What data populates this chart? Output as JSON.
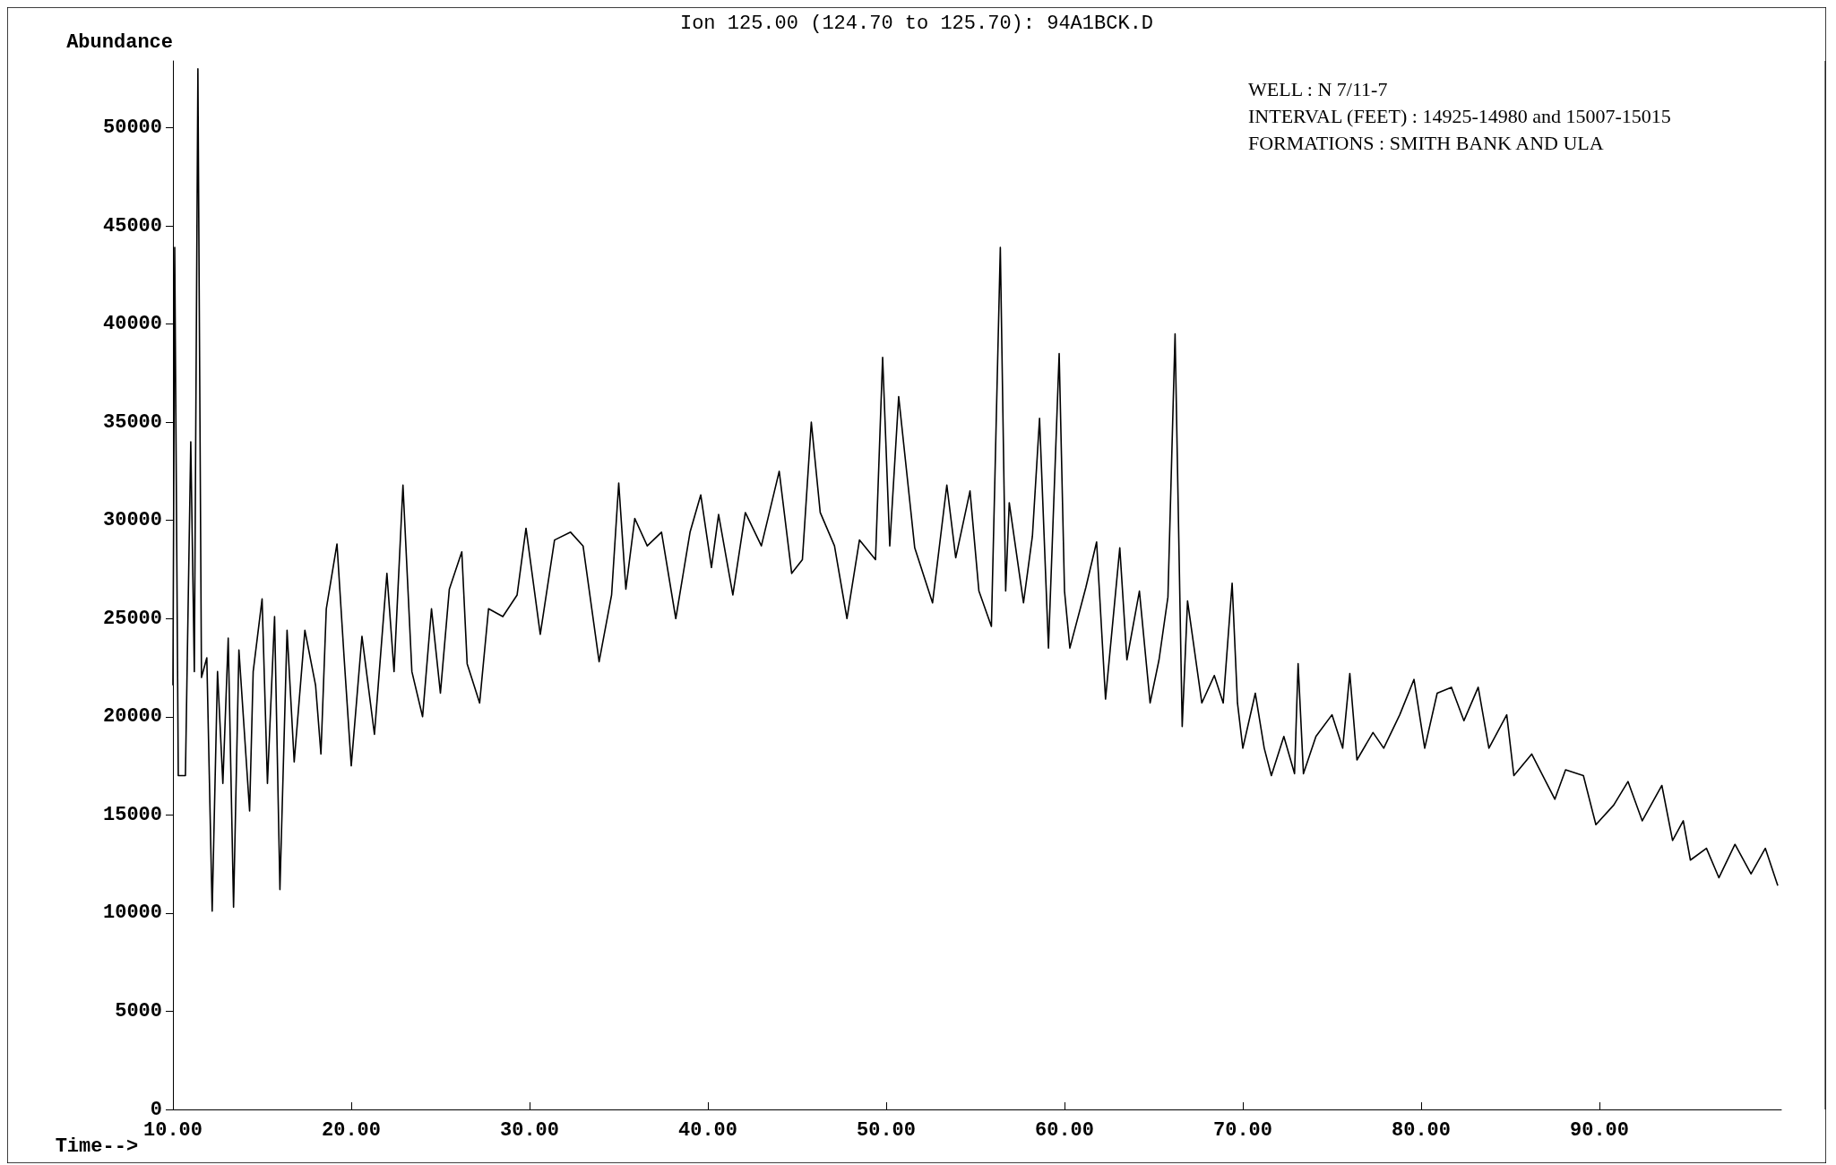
{
  "chart_data": {
    "type": "line",
    "title": "Ion 125.00 (124.70 to 125.70): 94A1BCK.D",
    "xlabel": "Time-->",
    "ylabel": "Abundance",
    "annotations": [
      "WELL : N 7/11-7",
      "INTERVAL (FEET) : 14925-14980 and 15007-15015",
      "FORMATIONS : SMITH BANK AND ULA"
    ],
    "series": [
      {
        "color": "#000000",
        "x": [
          10.0,
          10.1,
          10.3,
          10.7,
          11.0,
          11.2,
          11.4,
          11.6,
          11.9,
          12.2,
          12.5,
          12.8,
          13.1,
          13.4,
          13.7,
          14.3,
          14.5,
          15.0,
          15.3,
          15.7,
          16.0,
          16.4,
          16.8,
          17.4,
          18.0,
          18.3,
          18.6,
          19.2,
          19.6,
          20.0,
          20.6,
          21.3,
          22.0,
          22.4,
          22.9,
          23.4,
          24.0,
          24.5,
          25.0,
          25.5,
          26.2,
          26.5,
          27.2,
          27.7,
          28.5,
          29.3,
          29.8,
          30.6,
          31.4,
          32.3,
          33.0,
          33.9,
          34.6,
          35.0,
          35.4,
          35.9,
          36.6,
          37.4,
          38.2,
          39.0,
          39.6,
          40.2,
          40.6,
          41.4,
          42.1,
          43.0,
          44.0,
          44.7,
          45.3,
          45.8,
          46.3,
          47.1,
          47.8,
          48.5,
          49.4,
          49.8,
          50.2,
          50.7,
          51.6,
          52.6,
          53.4,
          53.9,
          54.7,
          55.2,
          55.9,
          56.4,
          56.7,
          56.9,
          57.7,
          58.2,
          58.6,
          59.1,
          59.7,
          60.0,
          60.3,
          61.2,
          61.8,
          62.3,
          63.1,
          63.5,
          64.2,
          64.8,
          65.3,
          65.8,
          66.2,
          66.6,
          66.9,
          67.7,
          68.4,
          68.9,
          69.4,
          69.7,
          70.0,
          70.7,
          71.2,
          71.6,
          72.3,
          72.9,
          73.1,
          73.4,
          74.1,
          75.0,
          75.6,
          76.0,
          76.4,
          77.3,
          77.9,
          78.8,
          79.6,
          80.2,
          80.9,
          81.7,
          82.4,
          83.2,
          83.8,
          84.8,
          85.2,
          86.2,
          87.5,
          88.1,
          89.1,
          89.8,
          90.8,
          91.6,
          92.4,
          93.5,
          94.1,
          94.7,
          95.1,
          96.0,
          96.7,
          97.6,
          98.5,
          99.3,
          100.0
        ],
        "values": [
          21600,
          43900,
          17000,
          17000,
          34000,
          22300,
          53000,
          22000,
          23000,
          10100,
          22300,
          16600,
          24000,
          10300,
          23400,
          15200,
          22300,
          26000,
          16600,
          25100,
          11200,
          24400,
          17700,
          24400,
          21600,
          18100,
          25500,
          28800,
          23000,
          17500,
          24100,
          19100,
          27300,
          22300,
          31800,
          22300,
          20000,
          25500,
          21200,
          26500,
          28400,
          22700,
          20700,
          25500,
          25100,
          26200,
          29600,
          24200,
          29000,
          29400,
          28700,
          22800,
          26200,
          31900,
          26500,
          30100,
          28700,
          29400,
          25000,
          29400,
          31300,
          27600,
          30300,
          26200,
          30400,
          28700,
          32500,
          27300,
          28000,
          35000,
          30400,
          28700,
          25000,
          29000,
          28000,
          38300,
          28700,
          36300,
          28600,
          25800,
          31800,
          28100,
          31500,
          26400,
          24600,
          43900,
          26400,
          30900,
          25800,
          29200,
          35200,
          23500,
          38500,
          26400,
          23500,
          26600,
          28900,
          20900,
          28600,
          22900,
          26400,
          20700,
          22900,
          26100,
          39500,
          19500,
          25900,
          20700,
          22100,
          20700,
          26800,
          20700,
          18400,
          21200,
          18400,
          17000,
          19000,
          17100,
          22700,
          17100,
          19000,
          20100,
          18400,
          22200,
          17800,
          19200,
          18400,
          20100,
          21900,
          18400,
          21200,
          21500,
          19800,
          21500,
          18400,
          20100,
          17000,
          18100,
          15800,
          17300,
          17000,
          14500,
          15500,
          16700,
          14700,
          16500,
          13700,
          14700,
          12700,
          13300,
          11800,
          13500,
          12000,
          13300,
          11400
        ]
      }
    ],
    "xlim": [
      10,
      100.2
    ],
    "ylim": [
      0,
      53400
    ],
    "xticks": [
      {
        "value": 10,
        "label": "10.00"
      },
      {
        "value": 20,
        "label": "20.00"
      },
      {
        "value": 30,
        "label": "30.00"
      },
      {
        "value": 40,
        "label": "40.00"
      },
      {
        "value": 50,
        "label": "50.00"
      },
      {
        "value": 60,
        "label": "60.00"
      },
      {
        "value": 70,
        "label": "70.00"
      },
      {
        "value": 80,
        "label": "80.00"
      },
      {
        "value": 90,
        "label": "90.00"
      }
    ],
    "yticks": [
      0,
      5000,
      10000,
      15000,
      20000,
      25000,
      30000,
      35000,
      40000,
      45000,
      50000
    ],
    "marker": "none",
    "line_style": "solid"
  }
}
